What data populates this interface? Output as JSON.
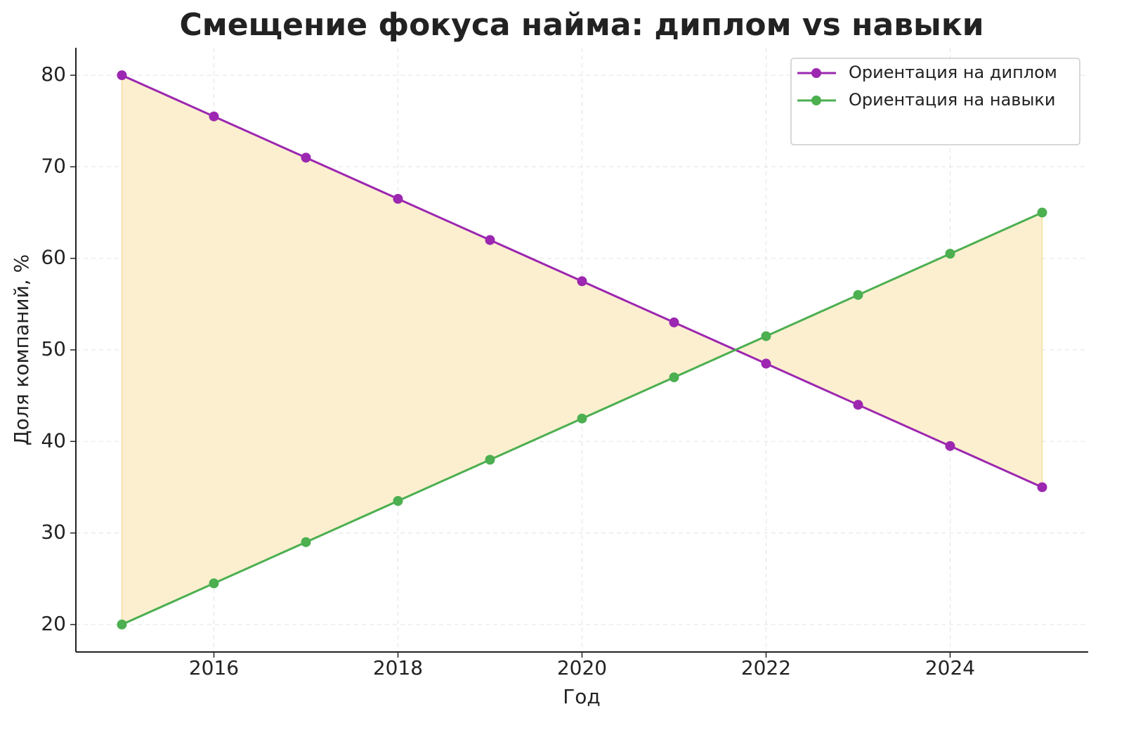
{
  "chart_data": {
    "type": "line",
    "title": "Смещение фокуса найма: диплом vs навыки",
    "x_label": "Год",
    "y_label": "Доля компаний, %",
    "x": [
      2015,
      2016,
      2017,
      2018,
      2019,
      2020,
      2021,
      2022,
      2023,
      2024,
      2025
    ],
    "series": [
      {
        "name": "Ориентация на диплом",
        "color": "#9c27b0",
        "values": [
          80,
          75.5,
          71,
          66.5,
          62,
          57.5,
          53,
          48.5,
          44,
          39.5,
          35
        ]
      },
      {
        "name": "Ориентация на навыки",
        "color": "#4caf50",
        "values": [
          20,
          24.5,
          29,
          33.5,
          38,
          42.5,
          47,
          51.5,
          56,
          60.5,
          65
        ]
      }
    ],
    "fill_between_color": "#fcefcf",
    "xlim": [
      2014.5,
      2025.5
    ],
    "xticks": [
      2016,
      2018,
      2020,
      2022,
      2024
    ],
    "ylim": [
      17,
      83
    ],
    "yticks": [
      20,
      30,
      40,
      50,
      60,
      70,
      80
    ],
    "grid": true,
    "legend": "upper right"
  }
}
